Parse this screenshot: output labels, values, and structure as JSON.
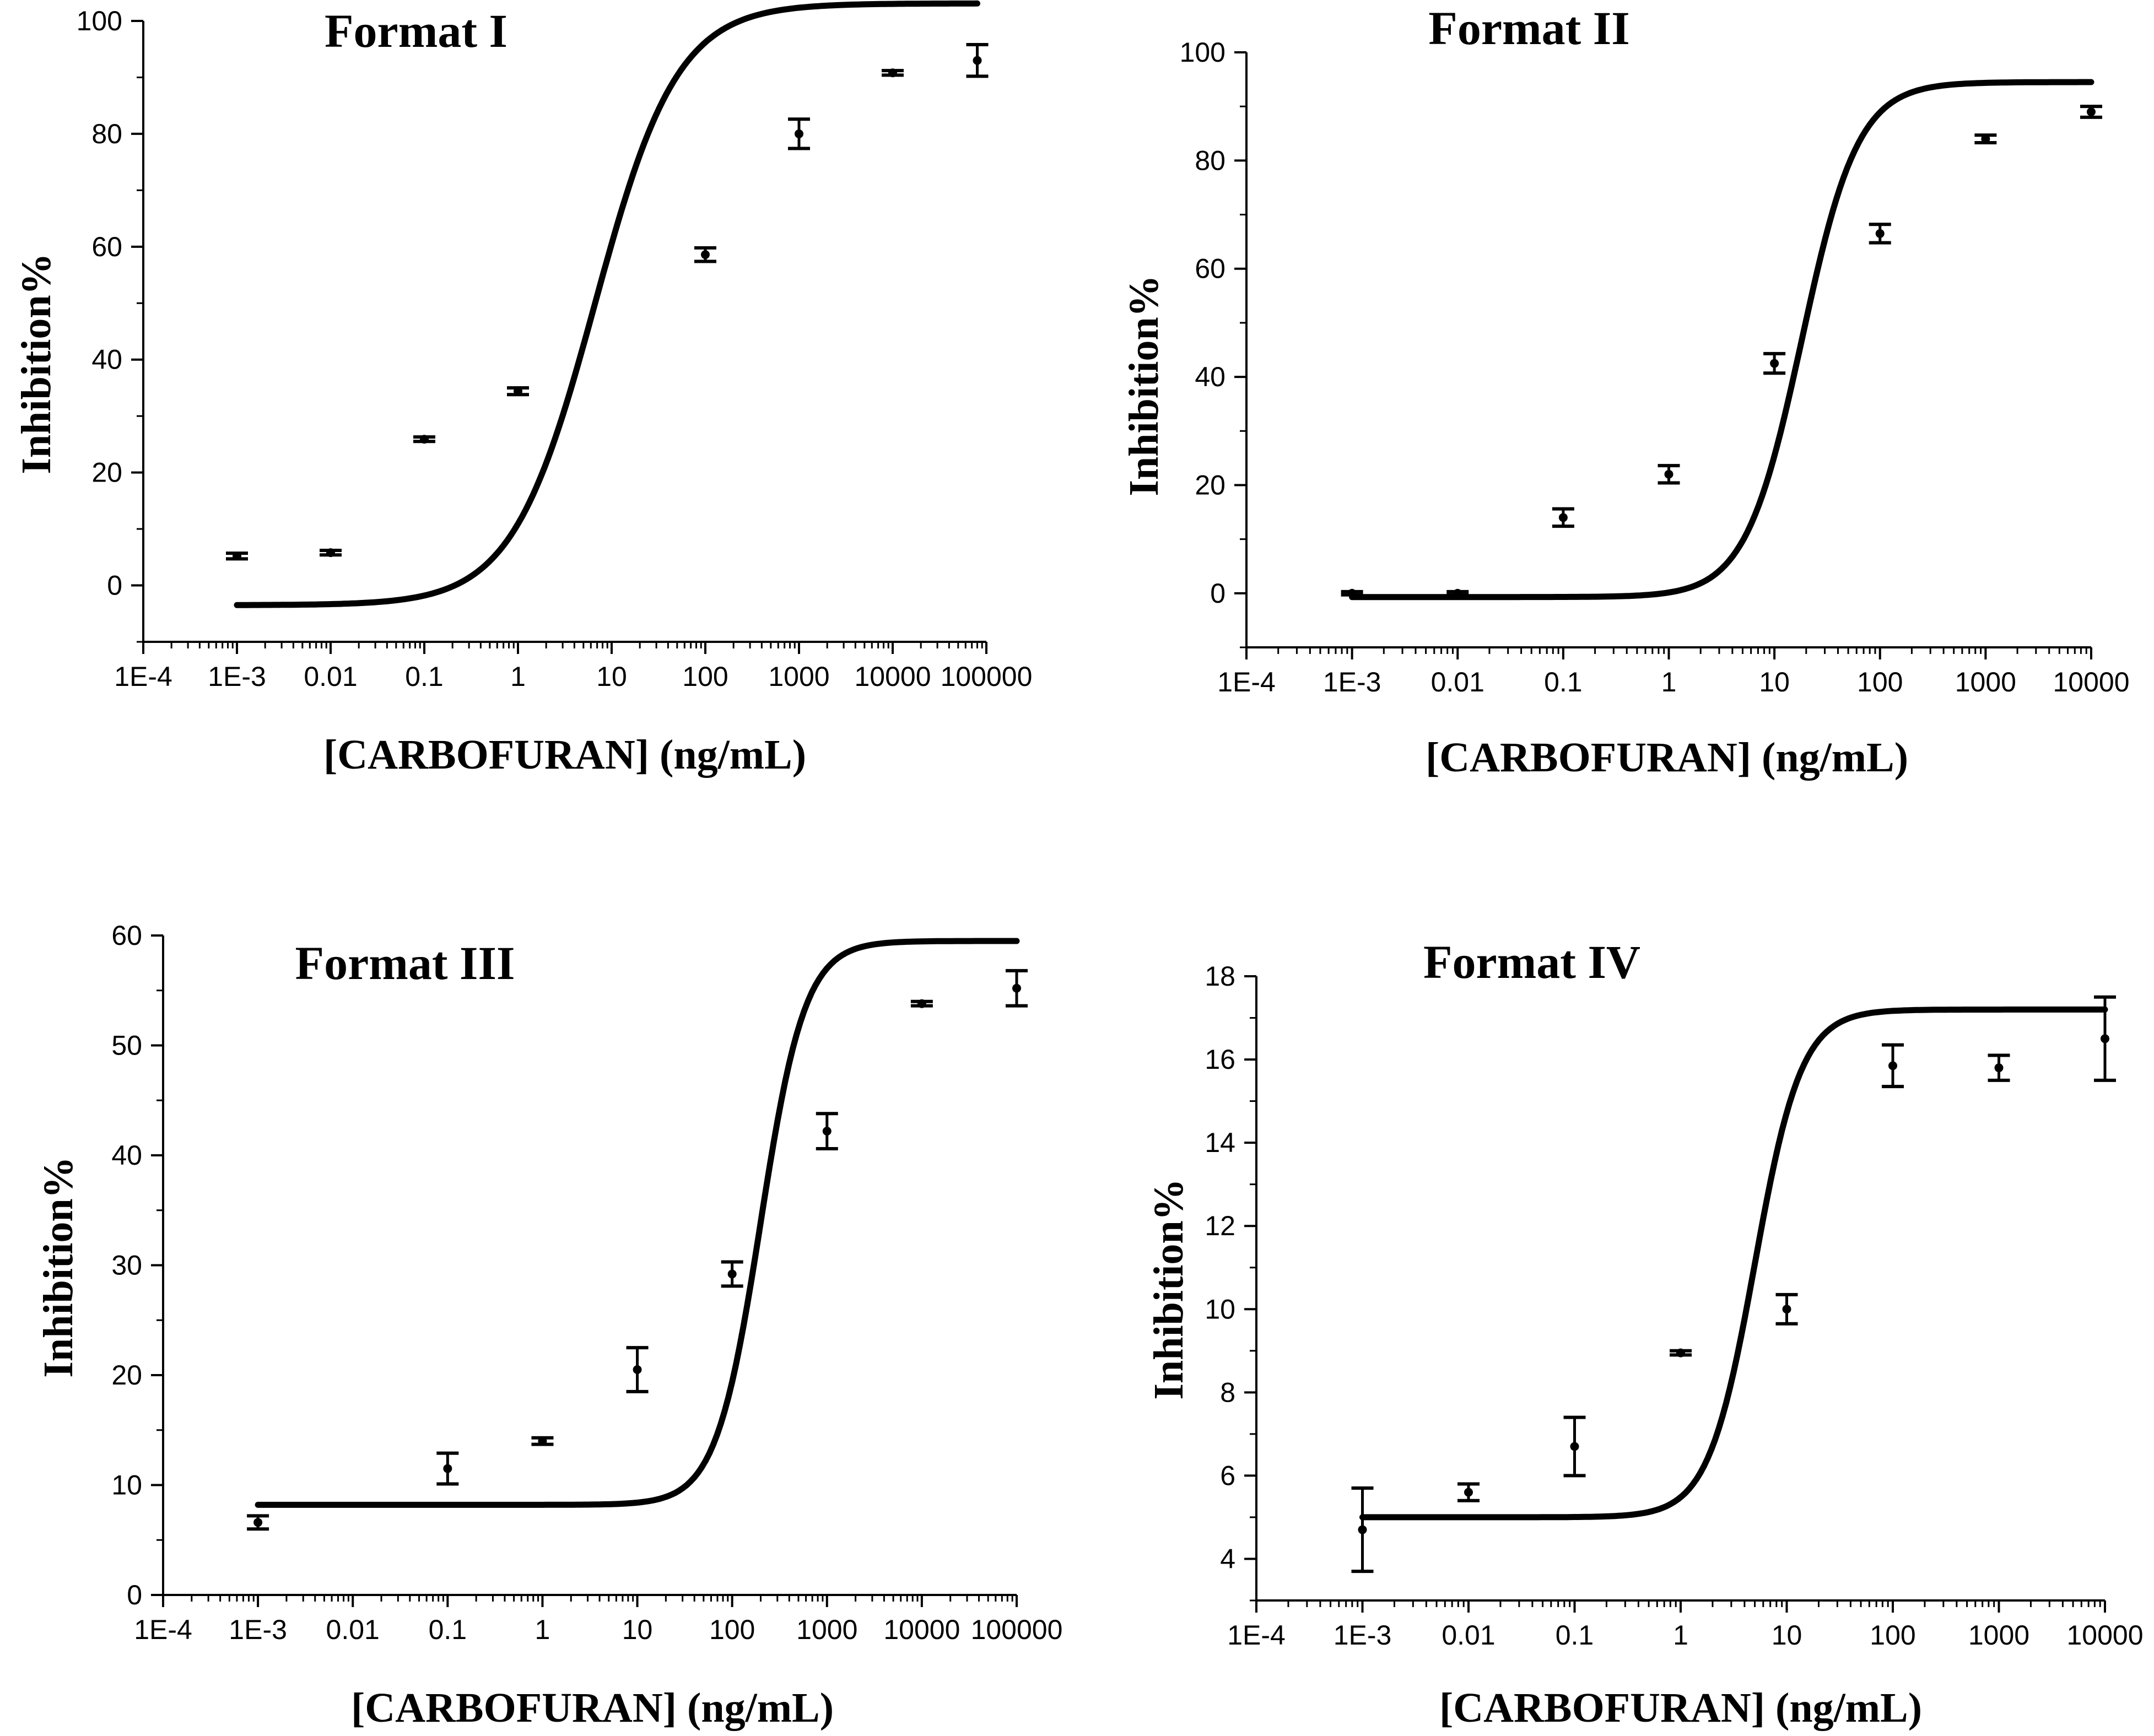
{
  "chart_data": [
    {
      "type": "scatter",
      "title": "Format I",
      "xlabel": "[CARBOFURAN] (ng/mL)",
      "ylabel": "Inhibition%",
      "x_scale": "log",
      "x_ticks": [
        "1E-4",
        "1E-3",
        "0.01",
        "0.1",
        "1",
        "10",
        "100",
        "1000",
        "10000",
        "100000"
      ],
      "y_ticks": [
        "0",
        "20",
        "40",
        "60",
        "80",
        "100"
      ],
      "xlim": [
        0.0001,
        100000
      ],
      "ylim": [
        -10,
        100
      ],
      "y_tick_values": [
        0,
        20,
        40,
        60,
        80,
        100
      ],
      "series": [
        {
          "name": "data",
          "x": [
            0.001,
            0.01,
            0.1,
            1,
            100,
            1000,
            10000,
            80000
          ],
          "y": [
            5.2,
            5.8,
            25.9,
            34.4,
            58.6,
            80.0,
            90.8,
            93.0
          ],
          "err": [
            0.5,
            0.4,
            0.4,
            0.6,
            1.2,
            2.6,
            0.4,
            2.8
          ]
        }
      ],
      "fit": {
        "bottom": -3.5,
        "top": 103.1,
        "log_x0": 0.82,
        "hill": 0.298
      }
    },
    {
      "type": "scatter",
      "title": "Format II",
      "xlabel": "[CARBOFURAN] (ng/mL)",
      "ylabel": "Inhibition%",
      "x_scale": "log",
      "x_ticks": [
        "1E-4",
        "1E-3",
        "0.01",
        "0.1",
        "1",
        "10",
        "100",
        "1000",
        "10000"
      ],
      "y_ticks": [
        "0",
        "20",
        "40",
        "60",
        "80",
        "100"
      ],
      "xlim": [
        0.0001,
        10000
      ],
      "ylim": [
        -10,
        100
      ],
      "y_tick_values": [
        0,
        20,
        40,
        60,
        80,
        100
      ],
      "series": [
        {
          "name": "data",
          "x": [
            0.001,
            0.01,
            0.1,
            1,
            10,
            100,
            1000,
            10000
          ],
          "y": [
            0.0,
            0.0,
            14.0,
            22.0,
            42.5,
            66.5,
            84.0,
            89.0
          ],
          "err": [
            0.3,
            0.3,
            1.6,
            1.6,
            1.8,
            1.7,
            0.7,
            1.0
          ]
        }
      ],
      "fit": {
        "bottom": -0.7,
        "top": 94.5,
        "log_x0": 1.26,
        "hill": 0.493
      }
    },
    {
      "type": "scatter",
      "title": "Format III",
      "xlabel": "[CARBOFURAN] (ng/mL)",
      "ylabel": "Inhibition%",
      "x_scale": "log",
      "x_ticks": [
        "1E-4",
        "1E-3",
        "0.01",
        "0.1",
        "1",
        "10",
        "100",
        "1000",
        "10000",
        "100000"
      ],
      "y_ticks": [
        "0",
        "10",
        "20",
        "30",
        "40",
        "50",
        "60"
      ],
      "xlim": [
        0.0001,
        100000
      ],
      "ylim": [
        0,
        60
      ],
      "y_tick_values": [
        0,
        10,
        20,
        30,
        40,
        50,
        60
      ],
      "series": [
        {
          "name": "data",
          "x": [
            0.001,
            0.1,
            1,
            10,
            100,
            1000,
            10000,
            100000
          ],
          "y": [
            6.6,
            11.5,
            14.0,
            20.5,
            29.2,
            42.2,
            53.8,
            55.2
          ],
          "err": [
            0.6,
            1.4,
            0.3,
            2.0,
            1.1,
            1.6,
            0.2,
            1.6
          ]
        }
      ],
      "fit": {
        "bottom": 8.2,
        "top": 59.5,
        "log_x0": 2.3,
        "hill": 0.56
      }
    },
    {
      "type": "scatter",
      "title": "Format IV",
      "xlabel": "[CARBOFURAN] (ng/mL)",
      "ylabel": "Inhibition%",
      "x_scale": "log",
      "x_ticks": [
        "1E-4",
        "1E-3",
        "0.01",
        "0.1",
        "1",
        "10",
        "100",
        "1000",
        "10000"
      ],
      "y_ticks": [
        "4",
        "6",
        "8",
        "10",
        "12",
        "14",
        "16",
        "18"
      ],
      "xlim": [
        0.0001,
        10000
      ],
      "ylim": [
        3,
        18
      ],
      "y_tick_values": [
        4,
        6,
        8,
        10,
        12,
        14,
        16,
        18
      ],
      "series": [
        {
          "name": "data",
          "x": [
            0.001,
            0.01,
            0.1,
            1,
            10,
            100,
            1000,
            10000
          ],
          "y": [
            4.7,
            5.6,
            6.7,
            8.95,
            10.0,
            15.85,
            15.8,
            16.5
          ],
          "err": [
            1.0,
            0.2,
            0.7,
            0.05,
            0.35,
            0.5,
            0.3,
            1.0
          ]
        }
      ],
      "fit": {
        "bottom": 5.0,
        "top": 17.2,
        "log_x0": 0.7,
        "hill": 0.6
      }
    }
  ]
}
